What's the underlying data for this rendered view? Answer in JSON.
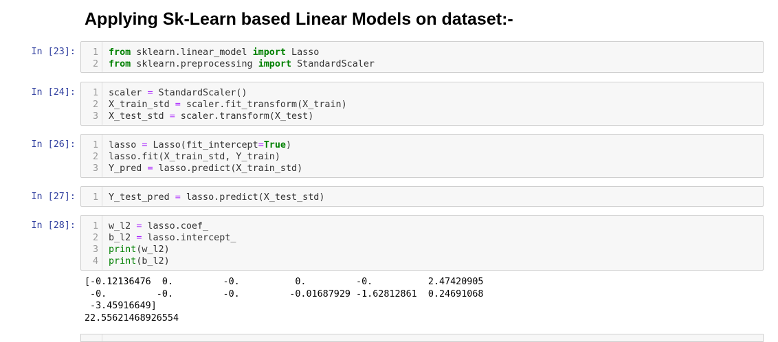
{
  "heading": "Applying Sk-Learn based Linear Models on dataset:-",
  "cells": [
    {
      "prompt": "In [23]:",
      "lines": [
        {
          "n": "1",
          "tokens": [
            {
              "t": "from",
              "c": "kw"
            },
            {
              "t": " sklearn.linear_model ",
              "c": ""
            },
            {
              "t": "import",
              "c": "kw"
            },
            {
              "t": " Lasso",
              "c": ""
            }
          ]
        },
        {
          "n": "2",
          "tokens": [
            {
              "t": "from",
              "c": "kw"
            },
            {
              "t": " sklearn.preprocessing ",
              "c": ""
            },
            {
              "t": "import",
              "c": "kw"
            },
            {
              "t": " StandardScaler",
              "c": ""
            }
          ]
        }
      ]
    },
    {
      "prompt": "In [24]:",
      "lines": [
        {
          "n": "1",
          "tokens": [
            {
              "t": "scaler ",
              "c": ""
            },
            {
              "t": "=",
              "c": "op"
            },
            {
              "t": " StandardScaler()",
              "c": ""
            }
          ]
        },
        {
          "n": "2",
          "tokens": [
            {
              "t": "X_train_std ",
              "c": ""
            },
            {
              "t": "=",
              "c": "op"
            },
            {
              "t": " scaler.fit_transform(X_train)",
              "c": ""
            }
          ]
        },
        {
          "n": "3",
          "tokens": [
            {
              "t": "X_test_std ",
              "c": ""
            },
            {
              "t": "=",
              "c": "op"
            },
            {
              "t": " scaler.transform(X_test)",
              "c": ""
            }
          ]
        }
      ]
    },
    {
      "prompt": "In [26]:",
      "lines": [
        {
          "n": "1",
          "tokens": [
            {
              "t": "lasso ",
              "c": ""
            },
            {
              "t": "=",
              "c": "op"
            },
            {
              "t": " Lasso(fit_intercept",
              "c": ""
            },
            {
              "t": "=",
              "c": "op"
            },
            {
              "t": "True",
              "c": "kw"
            },
            {
              "t": ")",
              "c": ""
            }
          ]
        },
        {
          "n": "2",
          "tokens": [
            {
              "t": "lasso.fit(X_train_std, Y_train)",
              "c": ""
            }
          ]
        },
        {
          "n": "3",
          "tokens": [
            {
              "t": "Y_pred ",
              "c": ""
            },
            {
              "t": "=",
              "c": "op"
            },
            {
              "t": " lasso.predict(X_train_std)",
              "c": ""
            }
          ]
        }
      ]
    },
    {
      "prompt": "In [27]:",
      "lines": [
        {
          "n": "1",
          "tokens": [
            {
              "t": "Y_test_pred ",
              "c": ""
            },
            {
              "t": "=",
              "c": "op"
            },
            {
              "t": " lasso.predict(X_test_std)",
              "c": ""
            }
          ]
        }
      ]
    },
    {
      "prompt": "In [28]:",
      "lines": [
        {
          "n": "1",
          "tokens": [
            {
              "t": "w_l2 ",
              "c": ""
            },
            {
              "t": "=",
              "c": "op"
            },
            {
              "t": " lasso.coef_",
              "c": ""
            }
          ]
        },
        {
          "n": "2",
          "tokens": [
            {
              "t": "b_l2 ",
              "c": ""
            },
            {
              "t": "=",
              "c": "op"
            },
            {
              "t": " lasso.intercept_",
              "c": ""
            }
          ]
        },
        {
          "n": "3",
          "tokens": [
            {
              "t": "print",
              "c": "bi"
            },
            {
              "t": "(w_l2)",
              "c": ""
            }
          ]
        },
        {
          "n": "4",
          "tokens": [
            {
              "t": "print",
              "c": "bi"
            },
            {
              "t": "(b_l2)",
              "c": ""
            }
          ]
        }
      ]
    }
  ],
  "output_lines": [
    "[-0.12136476  0.         -0.          0.         -0.          2.47420905",
    " -0.         -0.         -0.         -0.01687929 -1.62812861  0.24691068",
    " -3.45916649]",
    "22.55621468926554"
  ],
  "colors": {
    "prompt": "#303f9f",
    "keyword": "#008000",
    "operator": "#aa22ff",
    "cell_background": "#f7f7f7",
    "cell_border": "#cfcfcf"
  }
}
